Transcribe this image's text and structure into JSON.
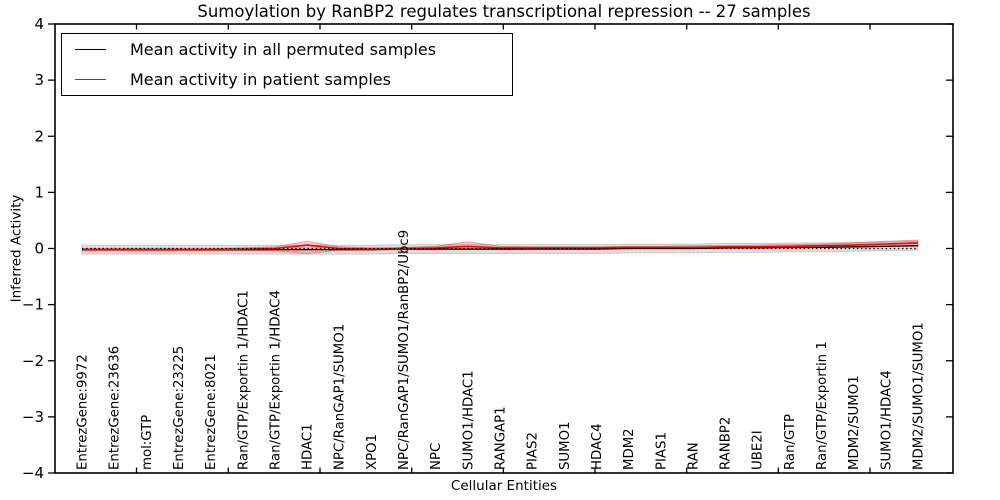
{
  "title": "Sumoylation by RanBP2 regulates transcriptional repression -- 27 samples",
  "axes": {
    "xlabel": "Cellular Entities",
    "ylabel": "Inferred Activity",
    "yticks": [
      "4",
      "3",
      "2",
      "1",
      "0",
      "−1",
      "−2",
      "−3",
      "−4"
    ],
    "ylim": [
      -4,
      4
    ],
    "grid": false
  },
  "legend": {
    "position": "upper left",
    "items": [
      {
        "label": "Mean activity in all permuted samples",
        "color": "#000000"
      },
      {
        "label": "Mean activity in patient samples",
        "color": "#ff0000"
      }
    ]
  },
  "chart_data": {
    "type": "line",
    "title": "Sumoylation by RanBP2 regulates transcriptional repression -- 27 samples",
    "xlabel": "Cellular Entities",
    "ylabel": "Inferred Activity",
    "ylim": [
      -4,
      4
    ],
    "legend_position": "upper left",
    "grid": false,
    "zero_line_dotted": true,
    "categories": [
      "EntrezGene:9972",
      "EntrezGene:23636",
      "mol:GTP",
      "EntrezGene:23225",
      "EntrezGene:8021",
      "Ran/GTP/Exportin 1/HDAC1",
      "Ran/GTP/Exportin 1/HDAC4",
      "HDAC1",
      "NPC/RanGAP1/SUMO1",
      "XPO1",
      "NPC/RanGAP1/SUMO1/RanBP2/Ubc9",
      "NPC",
      "SUMO1/HDAC1",
      "RANGAP1",
      "PIAS2",
      "SUMO1",
      "HDAC4",
      "MDM2",
      "PIAS1",
      "RAN",
      "RANBP2",
      "UBE2I",
      "Ran/GTP",
      "Ran/GTP/Exportin 1",
      "MDM2/SUMO1",
      "SUMO1/HDAC4",
      "MDM2/SUMO1/SUMO1"
    ],
    "series": [
      {
        "name": "Mean activity in all permuted samples",
        "color": "#000000",
        "values": [
          -0.02,
          -0.02,
          -0.02,
          -0.02,
          -0.02,
          -0.02,
          -0.02,
          -0.02,
          -0.02,
          -0.02,
          -0.01,
          -0.01,
          -0.01,
          -0.01,
          -0.01,
          -0.01,
          -0.01,
          0.0,
          0.0,
          0.0,
          0.01,
          0.01,
          0.02,
          0.02,
          0.03,
          0.04,
          0.05
        ]
      },
      {
        "name": "Mean activity in patient samples",
        "color": "#ff0000",
        "values": [
          -0.02,
          -0.02,
          -0.02,
          -0.02,
          -0.02,
          -0.01,
          0.0,
          0.06,
          0.0,
          -0.01,
          0.0,
          0.01,
          0.04,
          0.01,
          0.01,
          0.01,
          0.01,
          0.02,
          0.02,
          0.02,
          0.03,
          0.03,
          0.04,
          0.05,
          0.06,
          0.08,
          0.1
        ]
      }
    ],
    "bands": [
      {
        "name": "permuted samples range",
        "fill": "rgba(0,0,0,0.13)",
        "edge": "rgba(0,0,0,0.18)",
        "upper": [
          0.06,
          0.06,
          0.06,
          0.06,
          0.06,
          0.06,
          0.06,
          0.06,
          0.06,
          0.06,
          0.07,
          0.07,
          0.07,
          0.07,
          0.07,
          0.07,
          0.07,
          0.08,
          0.08,
          0.08,
          0.09,
          0.09,
          0.1,
          0.1,
          0.11,
          0.12,
          0.13
        ],
        "lower": [
          -0.1,
          -0.1,
          -0.1,
          -0.1,
          -0.1,
          -0.1,
          -0.1,
          -0.1,
          -0.1,
          -0.1,
          -0.09,
          -0.09,
          -0.09,
          -0.09,
          -0.09,
          -0.09,
          -0.09,
          -0.08,
          -0.08,
          -0.08,
          -0.07,
          -0.07,
          -0.06,
          -0.06,
          -0.05,
          -0.04,
          -0.03
        ]
      },
      {
        "name": "patient samples range",
        "fill": "rgba(255,0,0,0.18)",
        "edge": "rgba(255,0,0,0.40)",
        "upper": [
          0.0,
          0.0,
          0.0,
          0.0,
          0.0,
          0.01,
          0.03,
          0.13,
          0.03,
          0.01,
          0.02,
          0.04,
          0.12,
          0.04,
          0.03,
          0.03,
          0.03,
          0.04,
          0.04,
          0.05,
          0.05,
          0.06,
          0.07,
          0.08,
          0.1,
          0.13,
          0.15
        ],
        "lower": [
          -0.04,
          -0.04,
          -0.04,
          -0.04,
          -0.04,
          -0.04,
          -0.04,
          -0.09,
          -0.03,
          -0.03,
          -0.02,
          -0.02,
          -0.02,
          -0.02,
          -0.01,
          -0.01,
          -0.01,
          0.0,
          0.0,
          0.0,
          0.0,
          0.01,
          0.01,
          0.02,
          0.03,
          0.04,
          0.05
        ]
      }
    ]
  }
}
